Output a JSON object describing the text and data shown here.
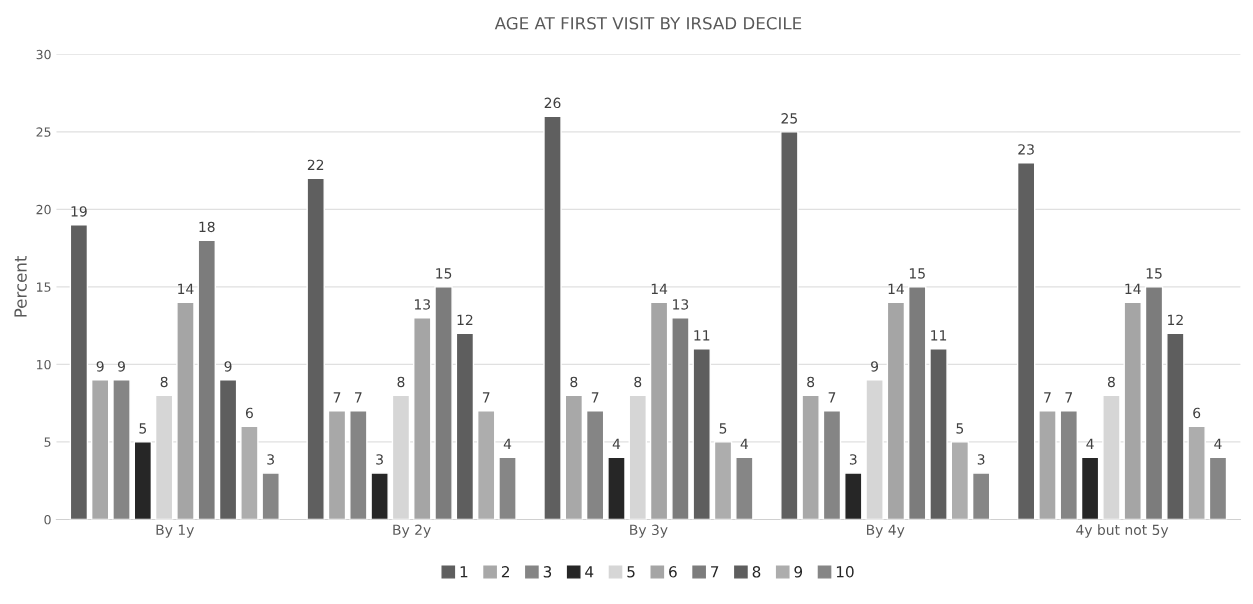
{
  "chart_data": {
    "type": "bar",
    "title": "AGE AT FIRST VISIT BY IRSAD DECILE",
    "ylabel": "Percent",
    "categories": [
      "By 1y",
      "By 2y",
      "By 3y",
      "By 4y",
      "4y but not 5y"
    ],
    "series": [
      {
        "name": "1",
        "color": "#5f5f5f",
        "values": [
          19,
          22,
          26,
          25,
          23
        ]
      },
      {
        "name": "2",
        "color": "#a8a8a8",
        "values": [
          9,
          7,
          8,
          8,
          7
        ]
      },
      {
        "name": "3",
        "color": "#858585",
        "values": [
          9,
          7,
          7,
          7,
          7
        ]
      },
      {
        "name": "4",
        "color": "#262626",
        "values": [
          5,
          3,
          4,
          3,
          4
        ]
      },
      {
        "name": "5",
        "color": "#d6d6d6",
        "values": [
          8,
          8,
          8,
          9,
          8
        ]
      },
      {
        "name": "6",
        "color": "#a5a5a5",
        "values": [
          14,
          13,
          14,
          14,
          14
        ]
      },
      {
        "name": "7",
        "color": "#7c7c7c",
        "values": [
          18,
          15,
          13,
          15,
          15
        ]
      },
      {
        "name": "8",
        "color": "#5e5e5e",
        "values": [
          9,
          12,
          11,
          11,
          12
        ]
      },
      {
        "name": "9",
        "color": "#adadad",
        "values": [
          6,
          7,
          5,
          5,
          6
        ]
      },
      {
        "name": "10",
        "color": "#868686",
        "values": [
          3,
          4,
          4,
          3,
          4
        ]
      }
    ],
    "ylim": [
      0,
      30
    ],
    "yticks": [
      0,
      5,
      10,
      15,
      20,
      25,
      30
    ],
    "grid": "y",
    "legend": "bottom",
    "data_labels": true
  }
}
